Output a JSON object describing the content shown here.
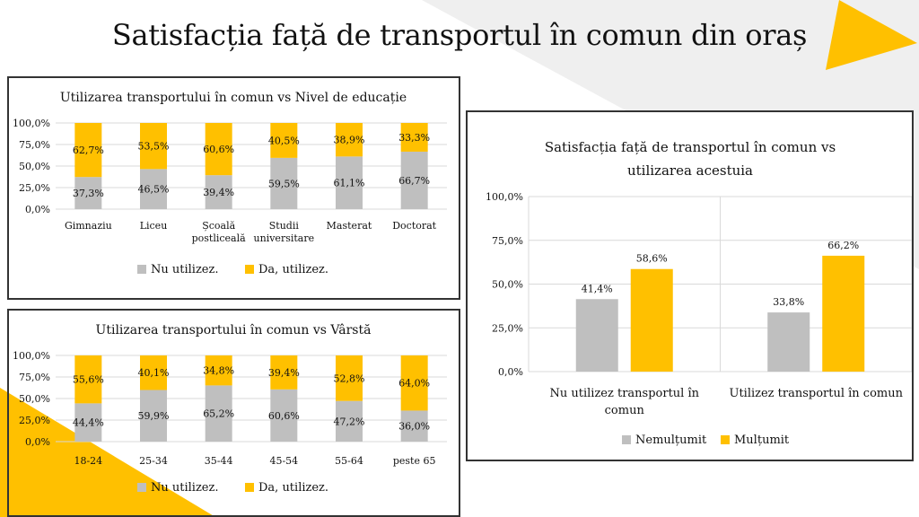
{
  "page_title": "Satisfacția față de transportul în comun din oraș",
  "colors": {
    "grey": "#BFBFBF",
    "yellow": "#FFC000",
    "deco_grey": "#EFEFEF"
  },
  "chart_data": [
    {
      "type": "bar",
      "stacked": true,
      "title": "Utilizarea transportului în comun vs Nivel de educație",
      "categories": [
        [
          "Gimnaziu"
        ],
        [
          "Liceu"
        ],
        [
          "Școală",
          "postliceală"
        ],
        [
          "Studii",
          "universitare"
        ],
        [
          "Masterat"
        ],
        [
          "Doctorat"
        ]
      ],
      "series": [
        {
          "name": "Nu utilizez.",
          "values": [
            37.3,
            46.5,
            39.4,
            59.5,
            61.1,
            66.7
          ],
          "labels": [
            "37,3%",
            "46,5%",
            "39,4%",
            "59,5%",
            "61,1%",
            "66,7%"
          ]
        },
        {
          "name": "Da, utilizez.",
          "values": [
            62.7,
            53.5,
            60.6,
            40.5,
            38.9,
            33.3
          ],
          "labels": [
            "62,7%",
            "53,5%",
            "60,6%",
            "40,5%",
            "38,9%",
            "33,3%"
          ]
        }
      ],
      "yticks": [
        "0,0%",
        "25,0%",
        "50,0%",
        "75,0%",
        "100,0%"
      ],
      "ylim": [
        0,
        100
      ],
      "grid": true,
      "legend": "bottom"
    },
    {
      "type": "bar",
      "stacked": true,
      "title": "Utilizarea transportului în comun vs Vârstă",
      "categories": [
        [
          "18-24"
        ],
        [
          "25-34"
        ],
        [
          "35-44"
        ],
        [
          "45-54"
        ],
        [
          "55-64"
        ],
        [
          "peste 65"
        ]
      ],
      "series": [
        {
          "name": "Nu utilizez.",
          "values": [
            44.4,
            59.9,
            65.2,
            60.6,
            47.2,
            36.0
          ],
          "labels": [
            "44,4%",
            "59,9%",
            "65,2%",
            "60,6%",
            "47,2%",
            "36,0%"
          ]
        },
        {
          "name": "Da, utilizez.",
          "values": [
            55.6,
            40.1,
            34.8,
            39.4,
            52.8,
            64.0
          ],
          "labels": [
            "55,6%",
            "40,1%",
            "34,8%",
            "39,4%",
            "52,8%",
            "64,0%"
          ]
        }
      ],
      "yticks": [
        "0,0%",
        "25,0%",
        "50,0%",
        "75,0%",
        "100,0%"
      ],
      "ylim": [
        0,
        100
      ],
      "grid": true,
      "legend": "bottom"
    },
    {
      "type": "bar",
      "stacked": false,
      "title": [
        "Satisfacția față de transportul în comun vs",
        "utilizarea acestuia"
      ],
      "categories": [
        [
          "Nu utilizez transportul în",
          "comun"
        ],
        [
          "Utilizez transportul în comun"
        ]
      ],
      "series": [
        {
          "name": "Nemulțumit",
          "values": [
            41.4,
            33.8
          ],
          "labels": [
            "41,4%",
            "33,8%"
          ]
        },
        {
          "name": "Mulțumit",
          "values": [
            58.6,
            66.2
          ],
          "labels": [
            "58,6%",
            "66,2%"
          ]
        }
      ],
      "yticks": [
        "0,0%",
        "25,0%",
        "50,0%",
        "75,0%",
        "100,0%"
      ],
      "ylim": [
        0,
        100
      ],
      "grid": true,
      "legend": "bottom"
    }
  ]
}
